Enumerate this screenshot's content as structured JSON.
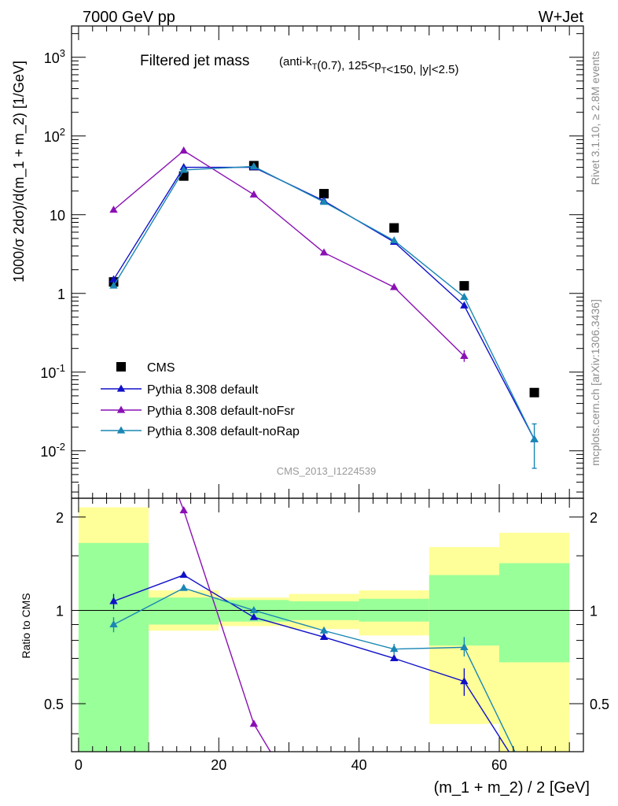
{
  "header": {
    "left": "7000 GeV pp",
    "right": "W+Jet"
  },
  "side_labels": {
    "rivet": "Rivet 3.1.10, ≥ 2.8M events",
    "mcplots": "mcplots.cern.ch [arXiv:1306.3436]"
  },
  "chart_data": {
    "type": "scatter",
    "title": "Filtered jet mass",
    "subtitle": "(anti-k_T(0.7), 125<p_T<150, |y|<2.5)",
    "analysis_id": "CMS_2013_I1224539",
    "xlabel": "(m_1 + m_2) / 2 [GeV]",
    "ylabel": "1000/σ 2dσ)/d(m_1 + m_2) [1/GeV]",
    "ratio_ylabel": "Ratio to CMS",
    "xlim": [
      -1,
      72
    ],
    "ylim": [
      0.0025,
      2500
    ],
    "yscale": "log",
    "ratio_ylim": [
      0.35,
      2.3
    ],
    "ratio_yscale": "log",
    "x_ticks": [
      "0",
      "20",
      "40",
      "60"
    ],
    "y_tick_labels": [
      "10^-2",
      "10^-1",
      "1",
      "10",
      "10^2",
      "10^3"
    ],
    "ratio_tick_labels": [
      "0.5",
      "1",
      "2"
    ],
    "legend_position": "bottom-left",
    "colors": {
      "cms": "#000000",
      "default": "#1010c8",
      "noFsr": "#8a10b4",
      "noRap": "#1a87b4",
      "band_stat": "#99ff99",
      "band_total": "#ffff99"
    },
    "series": [
      {
        "name": "CMS",
        "key": "cms",
        "x": [
          5,
          15,
          25,
          35,
          45,
          55,
          65
        ],
        "y": [
          1.4,
          31,
          42,
          18.5,
          6.8,
          1.25,
          0.055
        ]
      },
      {
        "name": "Pythia 8.308 default",
        "key": "default",
        "x": [
          5,
          15,
          25,
          35,
          45,
          55,
          65
        ],
        "y": [
          1.5,
          40,
          40,
          15,
          4.5,
          0.7,
          0.014
        ]
      },
      {
        "name": "Pythia 8.308 default-noFsr",
        "key": "noFsr",
        "x": [
          5,
          15,
          25,
          35,
          45,
          55
        ],
        "y": [
          11.5,
          65,
          18,
          3.3,
          1.2,
          0.16
        ]
      },
      {
        "name": "Pythia 8.308 default-noRap",
        "key": "noRap",
        "x": [
          5,
          15,
          25,
          35,
          45,
          55,
          65
        ],
        "y": [
          1.25,
          37,
          41,
          14.5,
          4.7,
          0.9,
          0.014
        ]
      }
    ],
    "ratio_series": [
      {
        "key": "default",
        "x": [
          5,
          15,
          25,
          35,
          45,
          55,
          65
        ],
        "y": [
          1.07,
          1.3,
          0.95,
          0.82,
          0.7,
          0.59,
          0.26
        ]
      },
      {
        "key": "noFsr",
        "x": [
          5,
          15,
          25,
          35,
          45
        ],
        "y": [
          8.2,
          2.1,
          0.43,
          0.18,
          0.18
        ]
      },
      {
        "key": "noRap",
        "x": [
          5,
          15,
          25,
          35,
          45,
          55,
          65
        ],
        "y": [
          0.9,
          1.18,
          1.0,
          0.86,
          0.75,
          0.76,
          0.26
        ]
      }
    ],
    "ratio_bands": [
      {
        "x0": 0,
        "x1": 10,
        "stat_lo": 0.35,
        "stat_hi": 1.65,
        "tot_lo": 0.35,
        "tot_hi": 2.15
      },
      {
        "x0": 10,
        "x1": 20,
        "stat_lo": 0.9,
        "stat_hi": 1.1,
        "tot_lo": 0.86,
        "tot_hi": 1.16
      },
      {
        "x0": 20,
        "x1": 30,
        "stat_lo": 0.92,
        "stat_hi": 1.08,
        "tot_lo": 0.89,
        "tot_hi": 1.1
      },
      {
        "x0": 30,
        "x1": 40,
        "stat_lo": 0.93,
        "stat_hi": 1.07,
        "tot_lo": 0.87,
        "tot_hi": 1.13
      },
      {
        "x0": 40,
        "x1": 50,
        "stat_lo": 0.92,
        "stat_hi": 1.09,
        "tot_lo": 0.83,
        "tot_hi": 1.16
      },
      {
        "x0": 50,
        "x1": 60,
        "stat_lo": 0.77,
        "stat_hi": 1.3,
        "tot_lo": 0.43,
        "tot_hi": 1.6
      },
      {
        "x0": 60,
        "x1": 70,
        "stat_lo": 0.68,
        "stat_hi": 1.42,
        "tot_lo": 0.35,
        "tot_hi": 1.78
      }
    ]
  }
}
